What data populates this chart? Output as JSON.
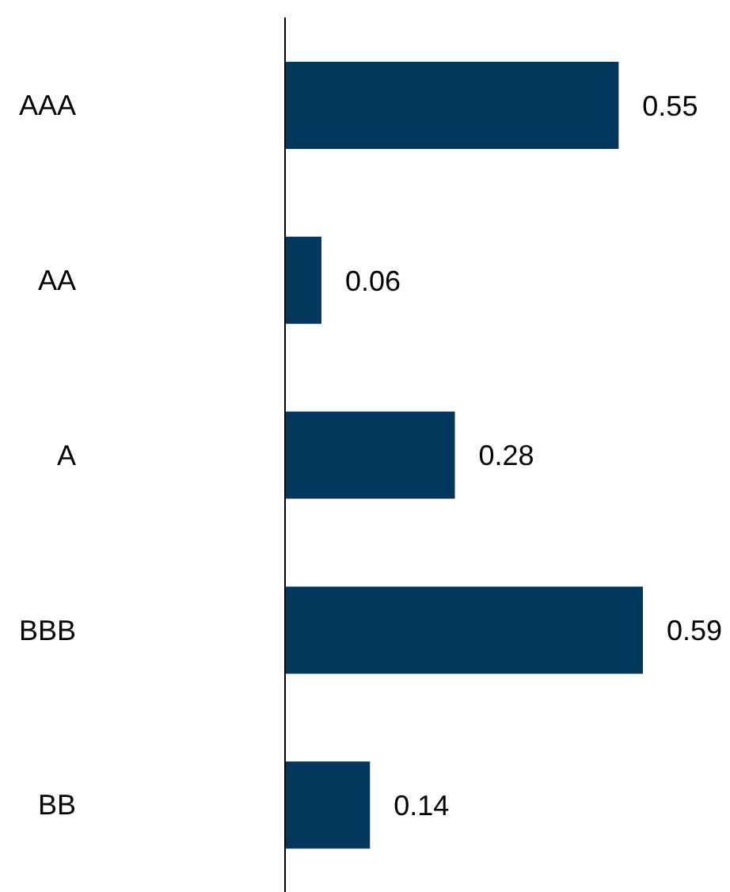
{
  "chart_data": {
    "type": "bar",
    "orientation": "horizontal",
    "categories": [
      "AAA",
      "AA",
      "A",
      "BBB",
      "BB"
    ],
    "values": [
      0.55,
      0.06,
      0.28,
      0.59,
      0.14
    ],
    "color": "#04375e",
    "data_labels": true
  }
}
